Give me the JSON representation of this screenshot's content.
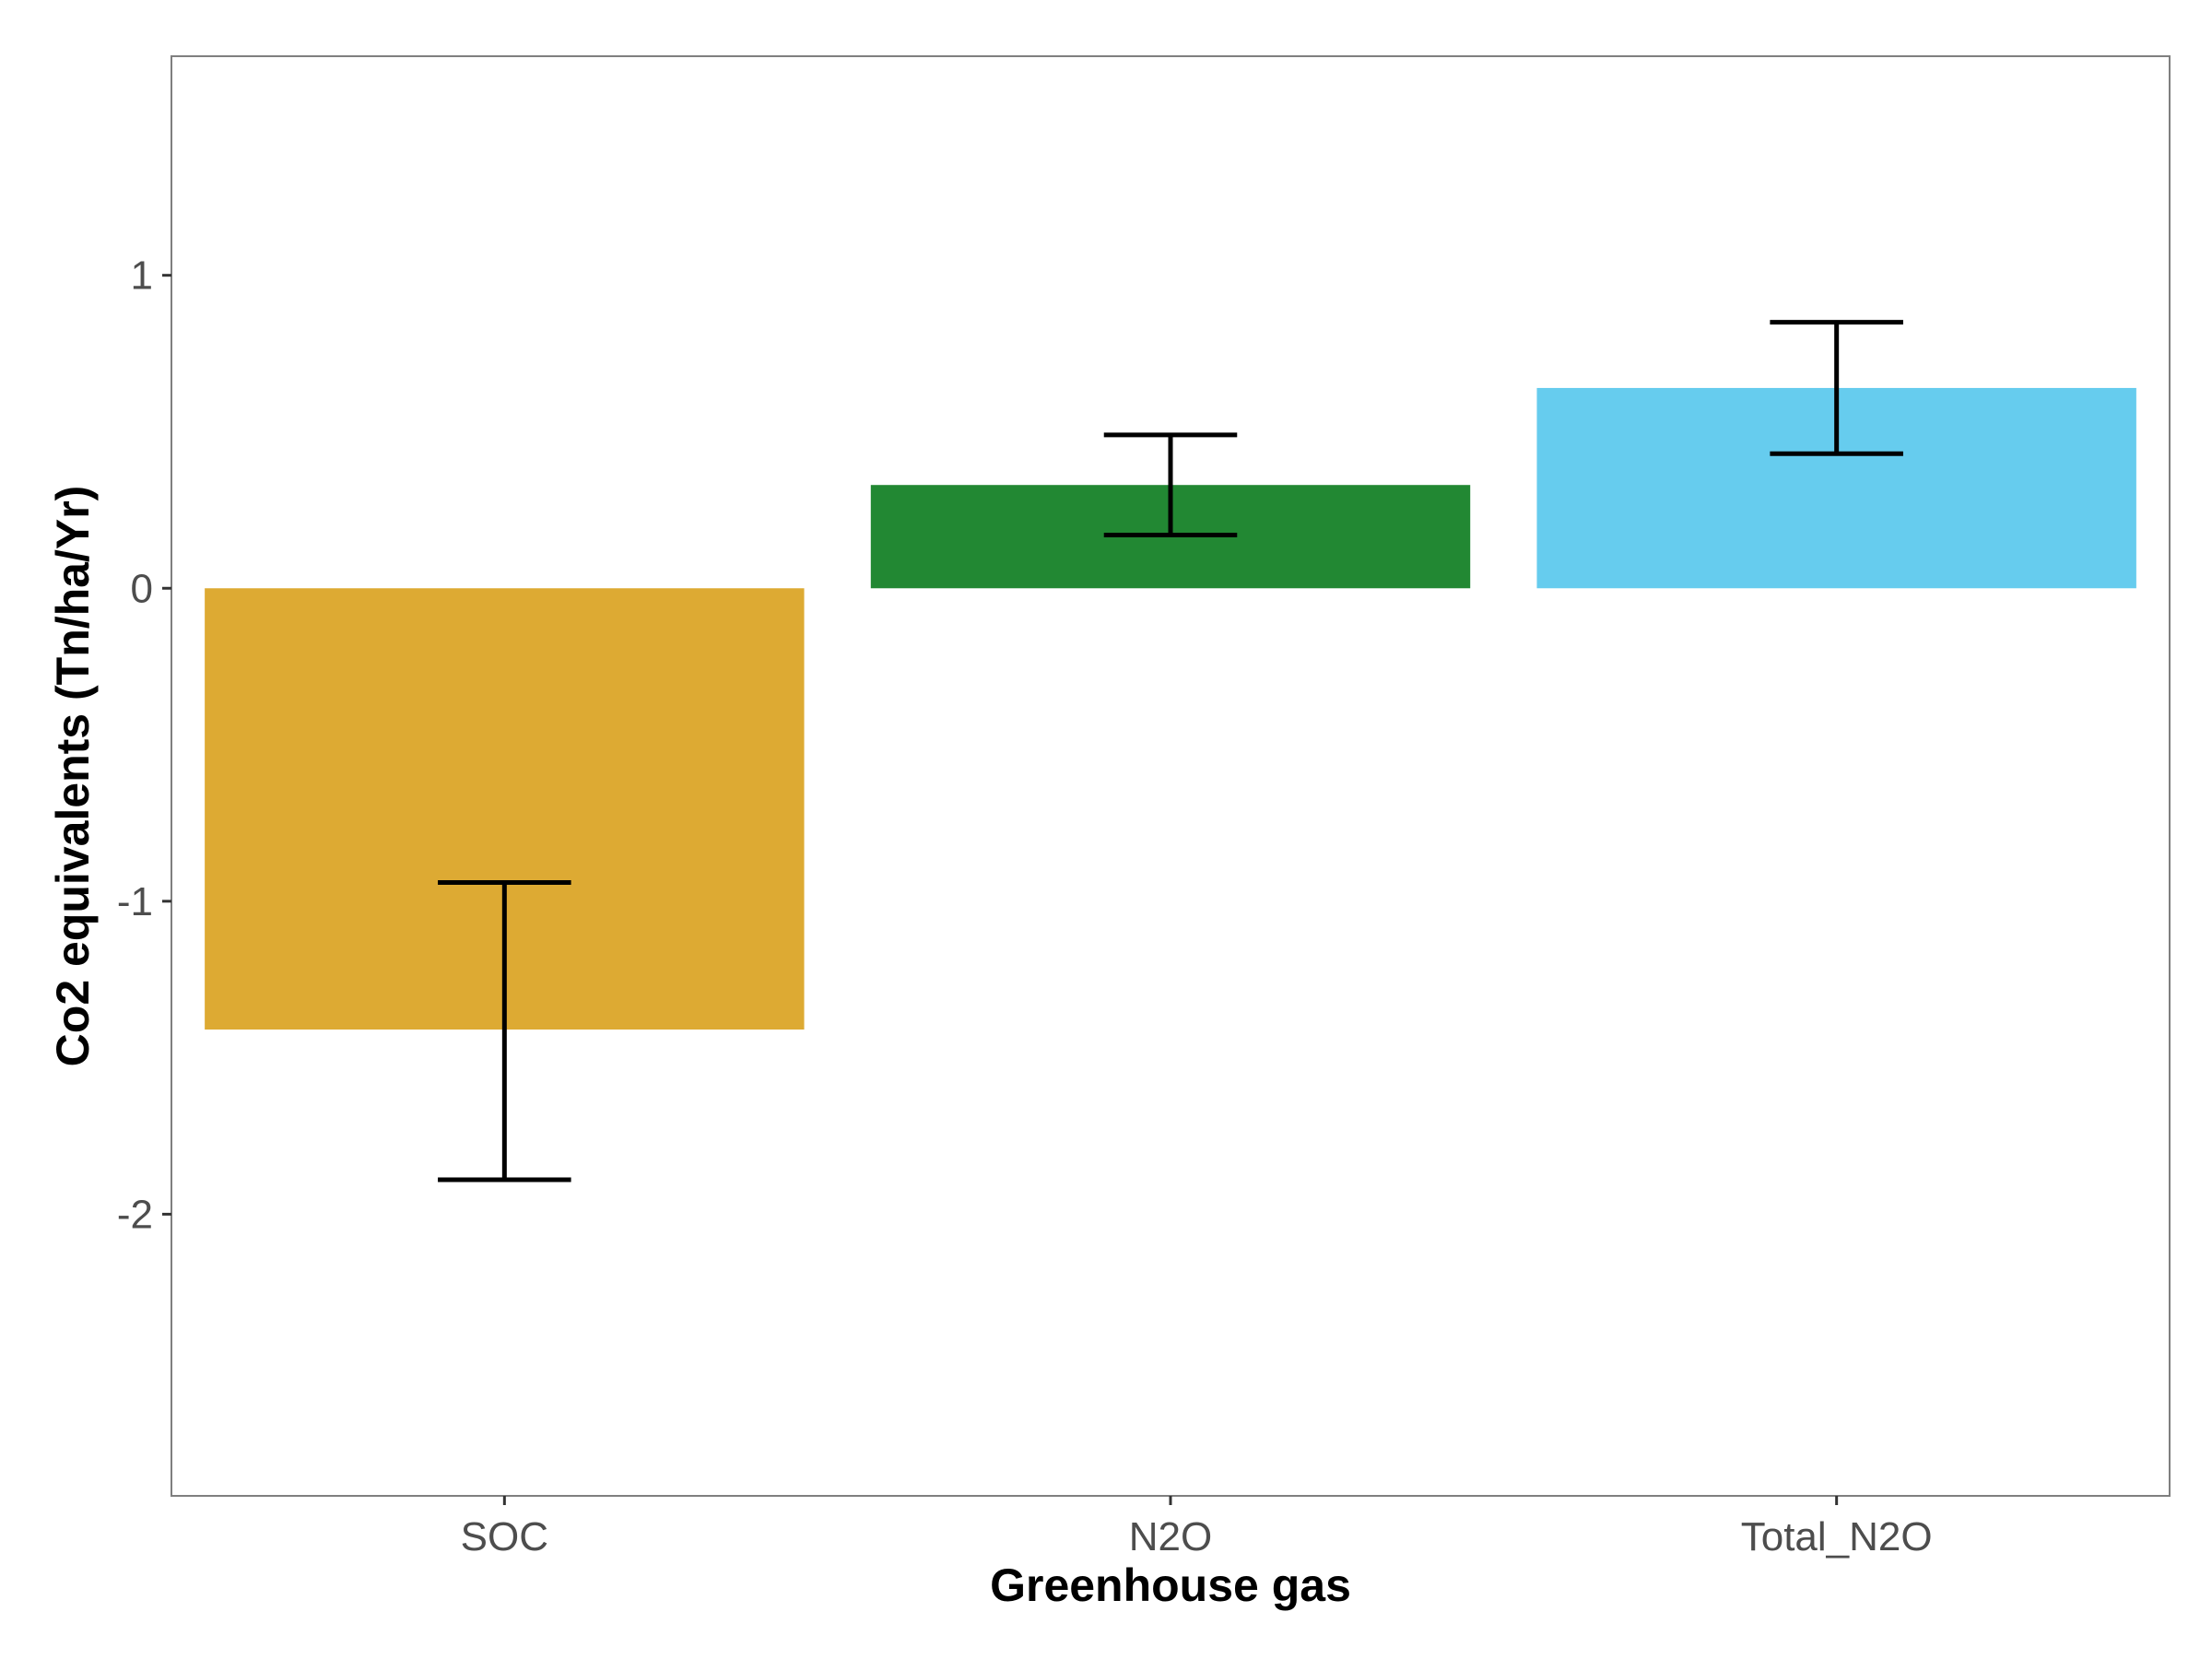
{
  "chart_data": {
    "type": "bar",
    "title": "",
    "xlabel": "Greenhouse gas",
    "ylabel": "Co2 equivalents (Tn/ha/Yr)",
    "categories": [
      "SOC",
      "N2O",
      "Total_N2O"
    ],
    "values": [
      -1.41,
      0.33,
      0.64
    ],
    "error_low": [
      -1.89,
      0.17,
      0.43
    ],
    "error_high": [
      -0.94,
      0.49,
      0.85
    ],
    "colors": [
      "#DDAA33",
      "#228833",
      "#66CCEE"
    ],
    "ylim": [
      -2.9,
      1.7
    ],
    "yticks": [
      -2,
      -1,
      0,
      1
    ],
    "ytick_labels": [
      "-2",
      "-1",
      "0",
      "1"
    ],
    "grid": false,
    "legend": "none",
    "panel_border_color": "#7f7f7f",
    "errorbar_color": "#000000"
  }
}
